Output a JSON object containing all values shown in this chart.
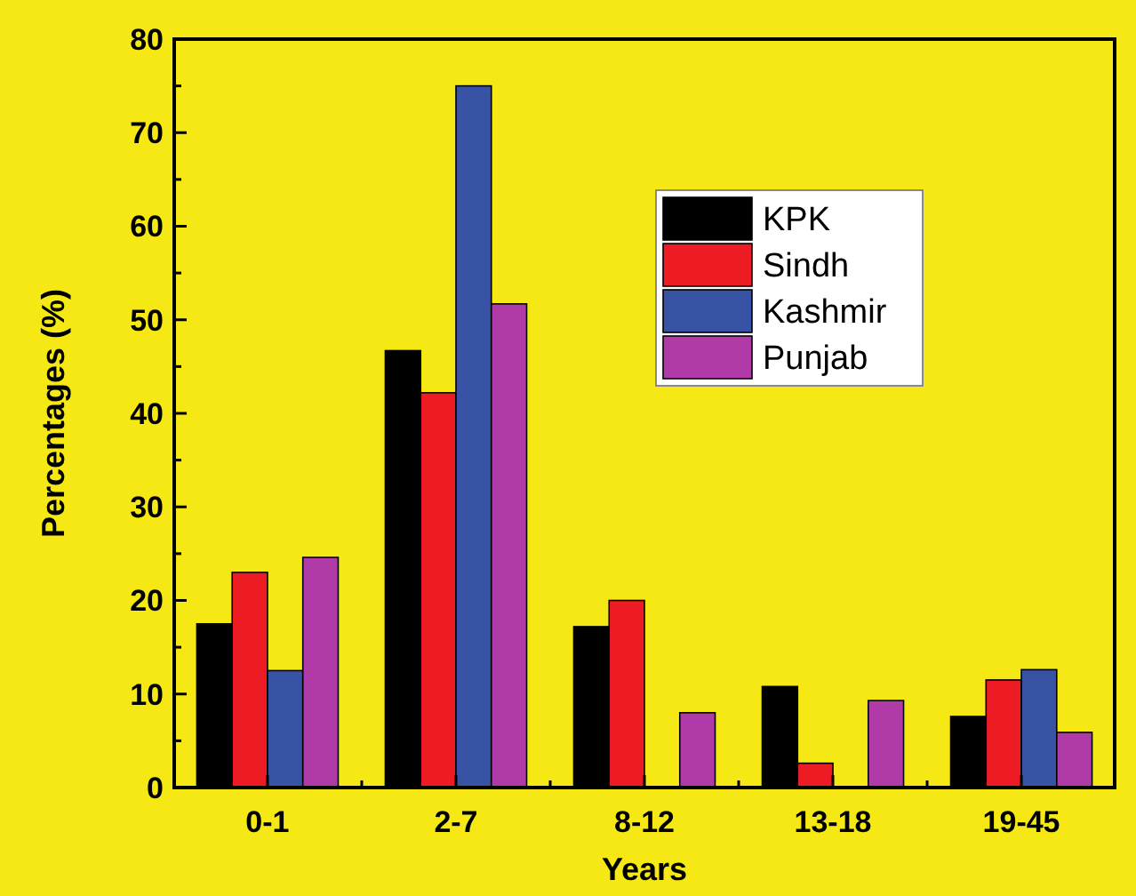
{
  "chart_data": {
    "type": "bar",
    "xlabel": "Years",
    "ylabel": "Percentages (%)",
    "categories": [
      "0-1",
      "2-7",
      "8-12",
      "13-18",
      "19-45"
    ],
    "series": [
      {
        "name": "KPK",
        "color": "#000000",
        "values": [
          17.5,
          46.7,
          17.2,
          10.8,
          7.6
        ]
      },
      {
        "name": "Sindh",
        "color": "#ed1c24",
        "values": [
          23,
          42.2,
          20,
          2.6,
          11.5
        ]
      },
      {
        "name": "Kashmir",
        "color": "#3953a4",
        "values": [
          12.5,
          75,
          null,
          null,
          12.6
        ]
      },
      {
        "name": "Punjab",
        "color": "#b03aa8",
        "values": [
          24.6,
          51.7,
          8,
          9.3,
          5.9
        ]
      }
    ],
    "ylim": [
      0,
      80
    ],
    "yticks": [
      0,
      {
        "value": 5,
        "label": null
      },
      10,
      {
        "value": 15,
        "label": null
      },
      20,
      {
        "value": 25,
        "label": null
      },
      30,
      {
        "value": 35,
        "label": null
      },
      40,
      {
        "value": 45,
        "label": null
      },
      50,
      {
        "value": 55,
        "label": null
      },
      60,
      {
        "value": 65,
        "label": null
      },
      70,
      {
        "value": 75,
        "label": null
      },
      80
    ],
    "legend": "top right",
    "grid": false
  }
}
